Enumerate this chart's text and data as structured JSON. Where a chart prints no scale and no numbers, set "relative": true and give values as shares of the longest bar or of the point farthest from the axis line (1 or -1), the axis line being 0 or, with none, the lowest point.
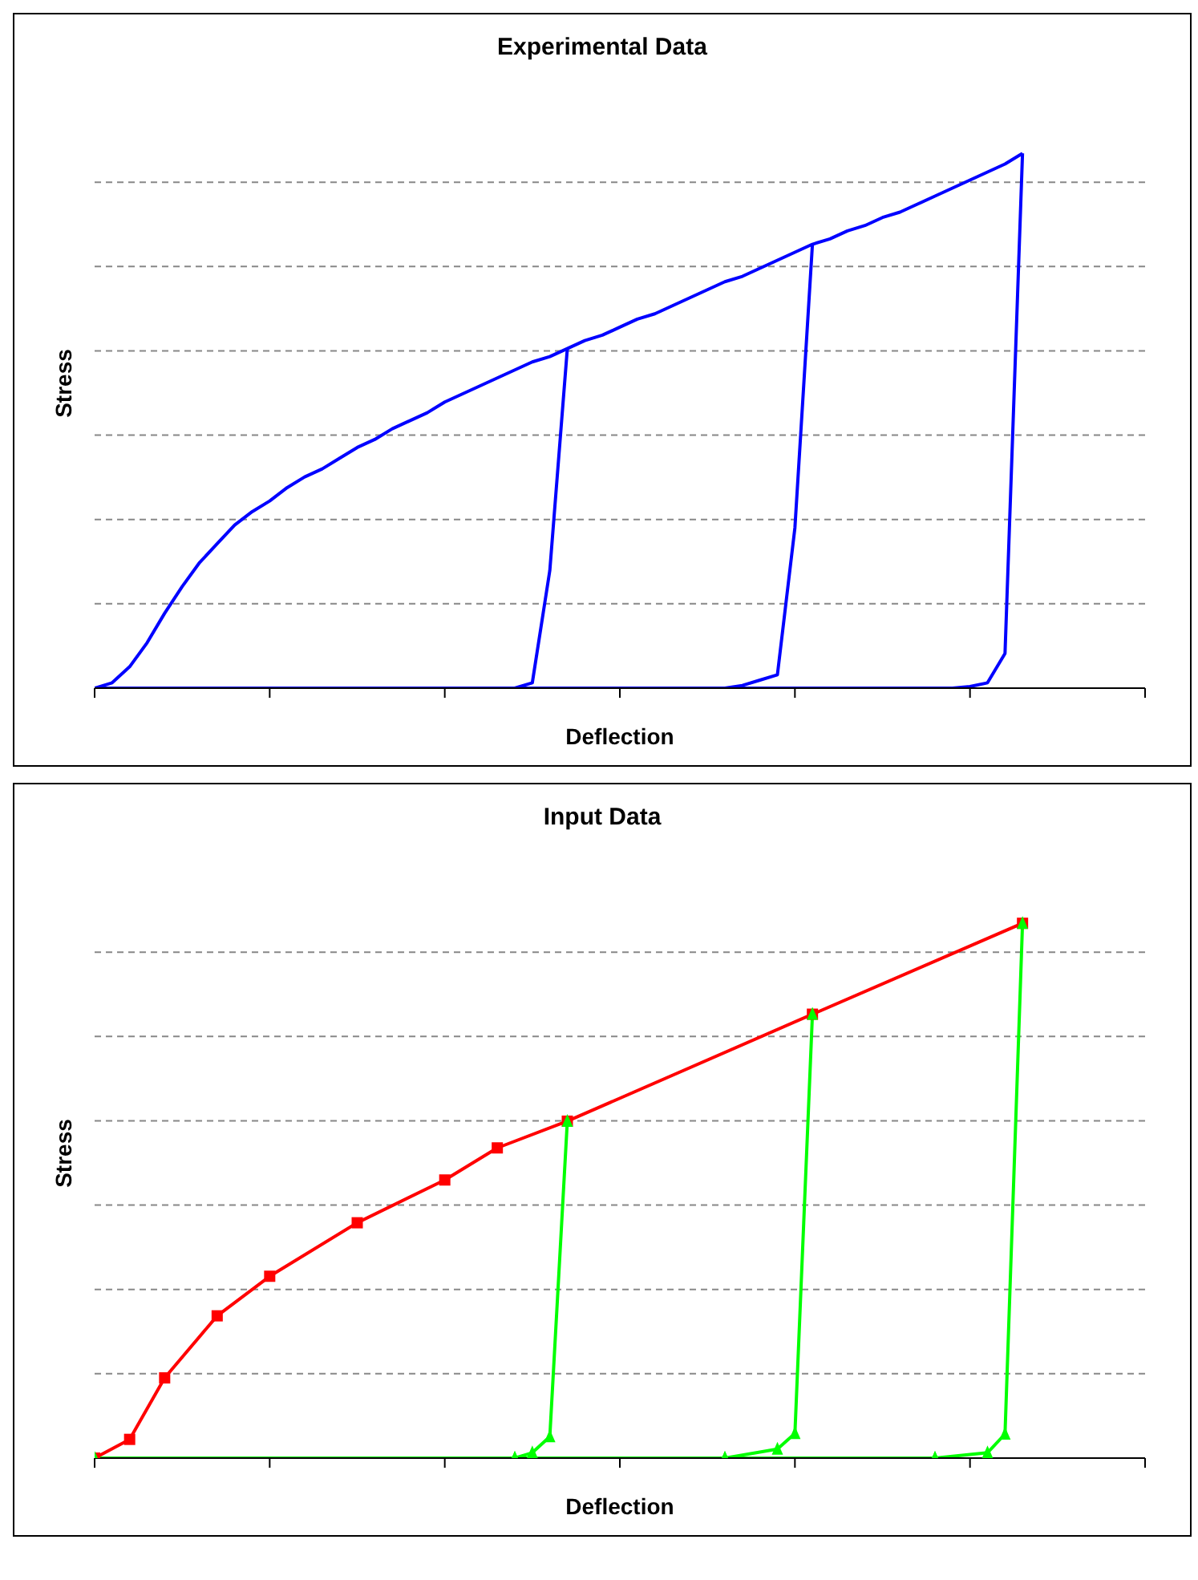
{
  "chart_data": [
    {
      "type": "line",
      "title": "Experimental Data",
      "xlabel": "Deflection",
      "ylabel": "Stress",
      "relative": true,
      "grid": "y",
      "marker": "none",
      "line_style": "solid",
      "categories": [
        null,
        null,
        null,
        null,
        null,
        null,
        null,
        null,
        null,
        null,
        null,
        null,
        null,
        null,
        null,
        null,
        null,
        null,
        null,
        null,
        null,
        null,
        null,
        null,
        null,
        null,
        null,
        null,
        null,
        null,
        null,
        null,
        null,
        null,
        null,
        null,
        null,
        null,
        null,
        null,
        null,
        null,
        null,
        null,
        null,
        null,
        null,
        null,
        null,
        null,
        null,
        null,
        null,
        null,
        null,
        null,
        null,
        null,
        null,
        null,
        null
      ],
      "series": [
        {
          "color": "#0000ff",
          "values": [
            0,
            0.01,
            0.04,
            0.085,
            0.14,
            0.19,
            0.235,
            0.27,
            0.305,
            0.33,
            0.35,
            0.375,
            0.395,
            0.41,
            0.43,
            0.45,
            0.465,
            0.485,
            0.5,
            0.515,
            0.535,
            0.55,
            0.565,
            0.58,
            0.595,
            0.61,
            0.62,
            0.635,
            0.65,
            0.66,
            0.675,
            0.69,
            0.7,
            0.715,
            0.73,
            0.745,
            0.76,
            0.77,
            0.785,
            0.8,
            0.815,
            0.83,
            0.84,
            0.855,
            0.865,
            0.88,
            0.89,
            0.905,
            0.92,
            0.935,
            0.95,
            0.965,
            0.98,
            1.0,
            null,
            null,
            null,
            null,
            null,
            null,
            null
          ]
        },
        {
          "color": "#0000ff",
          "values": [
            null,
            null,
            null,
            null,
            null,
            null,
            null,
            null,
            null,
            null,
            null,
            null,
            null,
            null,
            null,
            null,
            null,
            null,
            null,
            null,
            null,
            null,
            null,
            null,
            0,
            0.01,
            0.22,
            0.635,
            null,
            null,
            null,
            null,
            null,
            null,
            null,
            null,
            null,
            null,
            null,
            null,
            null,
            null,
            null,
            null,
            null,
            null,
            null,
            null,
            null,
            null,
            null,
            null,
            null,
            null,
            null,
            null,
            null,
            null,
            null,
            null,
            null
          ]
        },
        {
          "color": "#0000ff",
          "values": [
            null,
            null,
            null,
            null,
            null,
            null,
            null,
            null,
            null,
            null,
            null,
            null,
            null,
            null,
            null,
            null,
            null,
            null,
            null,
            null,
            null,
            null,
            null,
            null,
            null,
            null,
            null,
            null,
            null,
            null,
            null,
            null,
            null,
            null,
            null,
            null,
            0,
            0.005,
            0.015,
            0.025,
            0.3,
            0.83,
            null,
            null,
            null,
            null,
            null,
            null,
            null,
            null,
            null,
            null,
            null,
            null,
            null,
            null,
            null,
            null,
            null,
            null,
            null
          ]
        },
        {
          "color": "#0000ff",
          "values": [
            null,
            null,
            null,
            null,
            null,
            null,
            null,
            null,
            null,
            null,
            null,
            null,
            null,
            null,
            null,
            null,
            null,
            null,
            null,
            null,
            null,
            null,
            null,
            null,
            null,
            null,
            null,
            null,
            null,
            null,
            null,
            null,
            null,
            null,
            null,
            null,
            null,
            null,
            null,
            null,
            null,
            null,
            null,
            null,
            null,
            null,
            null,
            null,
            null,
            0,
            0.003,
            0.01,
            0.065,
            1.0,
            null,
            null,
            null,
            null,
            null,
            null,
            null
          ]
        },
        {
          "color": "#0000ff",
          "values": [
            0,
            0,
            0,
            0,
            0,
            0,
            0,
            0,
            0,
            0,
            0,
            0,
            0,
            0,
            0,
            0,
            0,
            0,
            0,
            0,
            0,
            0,
            0,
            0,
            0,
            0,
            0,
            0,
            0,
            0,
            0,
            0,
            0,
            0,
            0,
            0,
            0,
            0,
            0,
            0,
            0,
            0,
            0,
            0,
            0,
            0,
            0,
            0,
            0,
            0,
            0,
            null,
            null,
            null,
            null,
            null,
            null,
            null,
            null,
            null,
            null
          ]
        }
      ]
    },
    {
      "type": "line",
      "title": "Input Data",
      "xlabel": "Deflection",
      "ylabel": "Stress",
      "relative": true,
      "grid": "y",
      "line_style": "solid",
      "categories": [
        null,
        null,
        null,
        null,
        null,
        null,
        null,
        null,
        null,
        null,
        null,
        null,
        null,
        null,
        null,
        null,
        null,
        null,
        null,
        null,
        null,
        null,
        null,
        null,
        null,
        null,
        null,
        null,
        null,
        null,
        null,
        null,
        null,
        null,
        null,
        null,
        null,
        null,
        null,
        null,
        null,
        null,
        null,
        null,
        null,
        null,
        null,
        null,
        null,
        null,
        null,
        null,
        null,
        null,
        null,
        null,
        null,
        null,
        null,
        null,
        null
      ],
      "series": [
        {
          "color": "#ff0000",
          "marker": "square",
          "values": [
            0,
            null,
            0.035,
            null,
            0.15,
            null,
            null,
            0.266,
            null,
            null,
            0.34,
            null,
            null,
            null,
            null,
            0.44,
            null,
            null,
            null,
            null,
            0.52,
            null,
            null,
            0.58,
            null,
            null,
            null,
            0.63,
            null,
            null,
            null,
            null,
            null,
            null,
            null,
            null,
            null,
            null,
            null,
            null,
            null,
            0.83,
            null,
            null,
            null,
            null,
            null,
            null,
            null,
            null,
            null,
            null,
            null,
            1.0,
            null,
            null,
            null,
            null,
            null,
            null,
            null
          ]
        },
        {
          "color": "#00ff00",
          "marker": "triangle",
          "values": [
            null,
            null,
            null,
            null,
            null,
            null,
            null,
            null,
            null,
            null,
            null,
            null,
            null,
            null,
            null,
            null,
            null,
            null,
            null,
            null,
            null,
            null,
            null,
            null,
            0,
            0.01,
            0.04,
            0.63,
            null,
            null,
            null,
            null,
            null,
            null,
            null,
            null,
            null,
            null,
            null,
            null,
            null,
            null,
            null,
            null,
            null,
            null,
            null,
            null,
            null,
            null,
            null,
            null,
            null,
            null,
            null,
            null,
            null,
            null,
            null,
            null,
            null
          ]
        },
        {
          "color": "#00ff00",
          "marker": "triangle",
          "values": [
            null,
            null,
            null,
            null,
            null,
            null,
            null,
            null,
            null,
            null,
            null,
            null,
            null,
            null,
            null,
            null,
            null,
            null,
            null,
            null,
            null,
            null,
            null,
            null,
            null,
            null,
            null,
            null,
            null,
            null,
            null,
            null,
            null,
            null,
            null,
            null,
            0,
            null,
            null,
            0.017,
            0.046,
            0.83,
            null,
            null,
            null,
            null,
            null,
            null,
            null,
            null,
            null,
            null,
            null,
            null,
            null,
            null,
            null,
            null,
            null,
            null,
            null
          ]
        },
        {
          "color": "#00ff00",
          "marker": "triangle",
          "values": [
            null,
            null,
            null,
            null,
            null,
            null,
            null,
            null,
            null,
            null,
            null,
            null,
            null,
            null,
            null,
            null,
            null,
            null,
            null,
            null,
            null,
            null,
            null,
            null,
            null,
            null,
            null,
            null,
            null,
            null,
            null,
            null,
            null,
            null,
            null,
            null,
            null,
            null,
            null,
            null,
            null,
            null,
            null,
            null,
            null,
            null,
            null,
            null,
            0,
            null,
            null,
            0.01,
            0.045,
            1.0,
            null,
            null,
            null,
            null,
            null,
            null,
            null
          ]
        },
        {
          "color": "#00ff00",
          "marker": "triangle",
          "values": [
            0,
            null,
            null,
            null,
            null,
            null,
            null,
            null,
            null,
            null,
            null,
            null,
            null,
            null,
            null,
            null,
            null,
            null,
            null,
            null,
            null,
            null,
            null,
            null,
            0,
            null,
            null,
            null,
            null,
            null,
            null,
            null,
            null,
            null,
            null,
            null,
            0,
            null,
            null,
            null,
            null,
            null,
            null,
            null,
            null,
            null,
            null,
            null,
            0,
            null,
            null,
            null,
            null,
            null,
            null,
            null,
            null,
            null,
            null,
            null,
            null
          ]
        }
      ]
    }
  ]
}
